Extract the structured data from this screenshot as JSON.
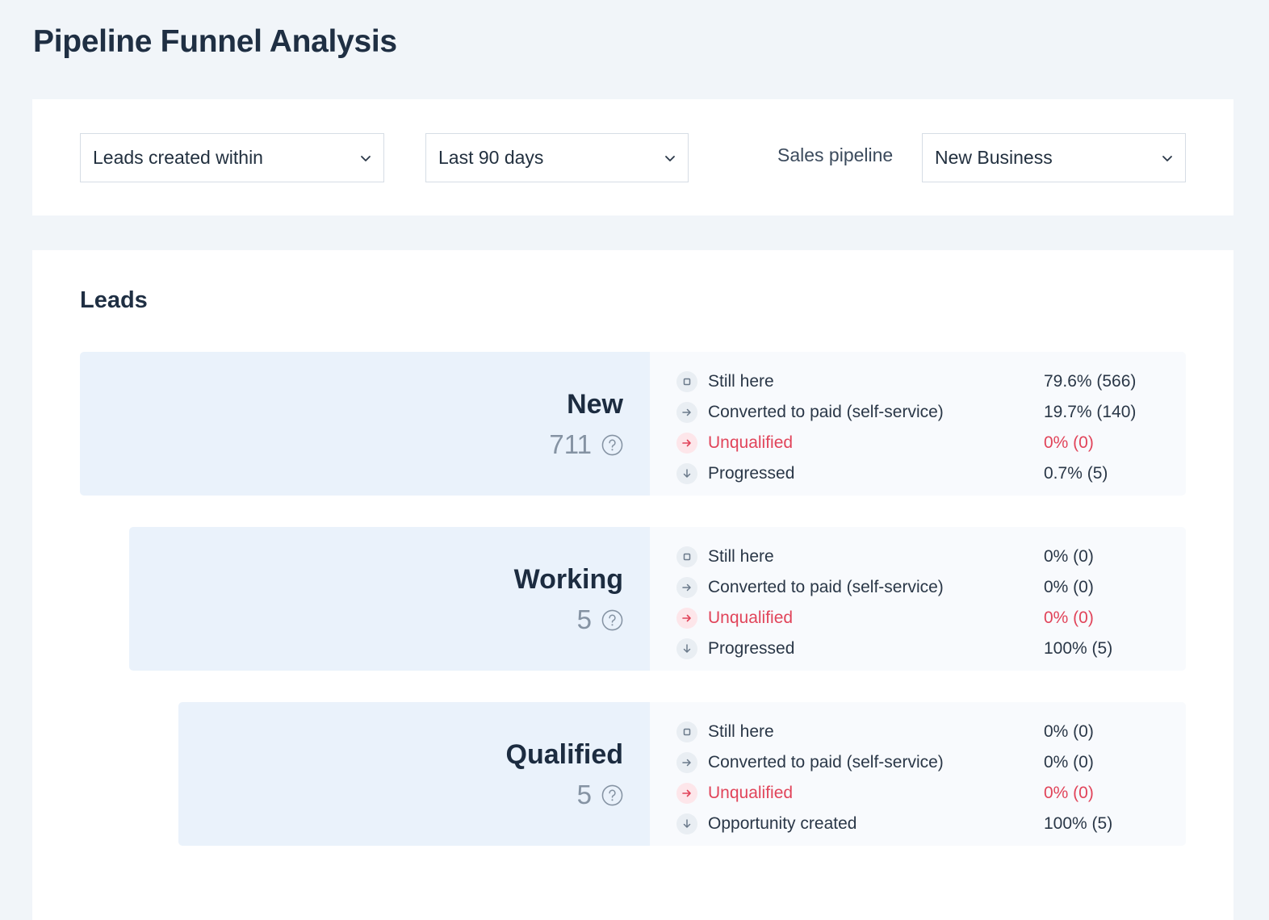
{
  "page": {
    "title": "Pipeline Funnel Analysis"
  },
  "filters": {
    "created_filter": "Leads created within",
    "range": "Last 90 days",
    "pipeline_label": "Sales pipeline",
    "pipeline": "New Business"
  },
  "section": {
    "title": "Leads"
  },
  "colors": {
    "accent_bg": "#eaf2fb",
    "negative": "#e1445a",
    "muted": "#8593a3"
  },
  "stages": [
    {
      "name": "New",
      "count": "711",
      "metrics": [
        {
          "icon": "square-icon",
          "label": "Still here",
          "value": "79.6% (566)"
        },
        {
          "icon": "arrow-right-icon",
          "label": "Converted to paid (self-service)",
          "value": "19.7% (140)"
        },
        {
          "icon": "arrow-right-red-icon",
          "label": "Unqualified",
          "value": "0% (0)"
        },
        {
          "icon": "arrow-down-icon",
          "label": "Progressed",
          "value": "0.7% (5)"
        }
      ]
    },
    {
      "name": "Working",
      "count": "5",
      "metrics": [
        {
          "icon": "square-icon",
          "label": "Still here",
          "value": "0% (0)"
        },
        {
          "icon": "arrow-right-icon",
          "label": "Converted to paid (self-service)",
          "value": "0% (0)"
        },
        {
          "icon": "arrow-right-red-icon",
          "label": "Unqualified",
          "value": "0% (0)"
        },
        {
          "icon": "arrow-down-icon",
          "label": "Progressed",
          "value": "100% (5)"
        }
      ]
    },
    {
      "name": "Qualified",
      "count": "5",
      "metrics": [
        {
          "icon": "square-icon",
          "label": "Still here",
          "value": "0% (0)"
        },
        {
          "icon": "arrow-right-icon",
          "label": "Converted to paid (self-service)",
          "value": "0% (0)"
        },
        {
          "icon": "arrow-right-red-icon",
          "label": "Unqualified",
          "value": "0% (0)"
        },
        {
          "icon": "arrow-down-icon",
          "label": "Opportunity created",
          "value": "100% (5)"
        }
      ]
    }
  ]
}
